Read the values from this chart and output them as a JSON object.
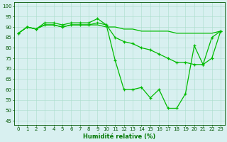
{
  "line1_x": [
    0,
    1,
    2,
    3,
    4,
    5,
    6,
    7,
    8,
    9,
    10,
    11,
    12,
    13,
    14,
    15,
    16,
    17,
    18,
    19,
    20,
    21,
    22,
    23
  ],
  "line1_y": [
    87,
    90,
    89,
    92,
    92,
    91,
    92,
    92,
    92,
    94,
    91,
    74,
    60,
    60,
    61,
    56,
    60,
    51,
    51,
    58,
    81,
    72,
    85,
    88
  ],
  "line2_x": [
    0,
    1,
    2,
    3,
    4,
    5,
    6,
    7,
    8,
    9,
    10,
    11,
    12,
    13,
    14,
    15,
    16,
    17,
    18,
    19,
    20,
    21,
    22,
    23
  ],
  "line2_y": [
    87,
    90,
    89,
    91,
    91,
    90,
    91,
    91,
    91,
    91,
    90,
    90,
    89,
    89,
    88,
    88,
    88,
    88,
    87,
    87,
    87,
    87,
    87,
    88
  ],
  "line3_x": [
    0,
    1,
    2,
    3,
    4,
    5,
    6,
    7,
    8,
    9,
    10,
    11,
    12,
    13,
    14,
    15,
    16,
    17,
    18,
    19,
    20,
    21,
    22,
    23
  ],
  "line3_y": [
    87,
    90,
    89,
    91,
    91,
    90,
    91,
    91,
    91,
    92,
    91,
    85,
    83,
    82,
    80,
    79,
    77,
    75,
    73,
    73,
    72,
    72,
    75,
    88
  ],
  "line_color": "#00bb00",
  "marker": "+",
  "xlabel": "Humidité relative (%)",
  "xlabel_color": "#007700",
  "xlabel_fontsize": 6,
  "yticks": [
    45,
    50,
    55,
    60,
    65,
    70,
    75,
    80,
    85,
    90,
    95,
    100
  ],
  "xlim": [
    -0.5,
    23.5
  ],
  "ylim": [
    43,
    102
  ],
  "bg_color": "#d8f0f0",
  "grid_color": "#aaddcc",
  "tick_fontsize": 5,
  "axis_color": "#005500",
  "lw": 0.9,
  "ms": 2.5
}
